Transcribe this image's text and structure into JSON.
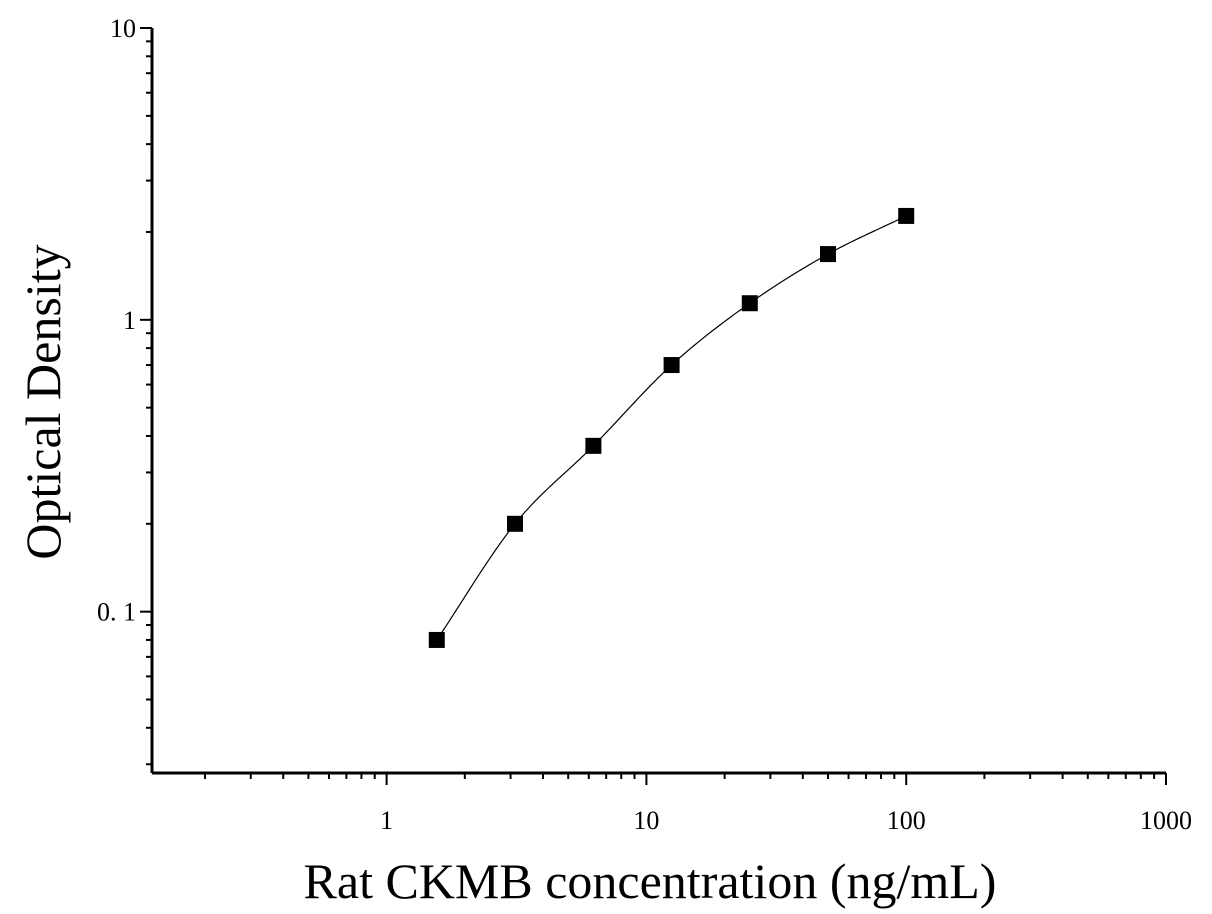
{
  "chart_data": {
    "type": "scatter",
    "xlabel": "Rat CKMB concentration (ng/mL)",
    "ylabel": "Optical Density",
    "x_scale": "log",
    "y_scale": "log",
    "xlim": [
      0.125,
      1000
    ],
    "ylim": [
      0.028,
      10
    ],
    "x_ticks": [
      {
        "value": 1,
        "label": "1"
      },
      {
        "value": 10,
        "label": "10"
      },
      {
        "value": 100,
        "label": "100"
      },
      {
        "value": 1000,
        "label": "1000"
      }
    ],
    "y_ticks": [
      {
        "value": 0.1,
        "label": "0. 1"
      },
      {
        "value": 1,
        "label": "1"
      },
      {
        "value": 10,
        "label": "10"
      }
    ],
    "grid": false,
    "legend": "none",
    "fit_curve": true,
    "marker": "square",
    "color": "#000000",
    "series": [
      {
        "x": [
          1.56,
          3.12,
          6.25,
          12.5,
          25,
          50,
          100
        ],
        "y": [
          0.08,
          0.2,
          0.37,
          0.7,
          1.14,
          1.68,
          2.27
        ]
      }
    ]
  }
}
